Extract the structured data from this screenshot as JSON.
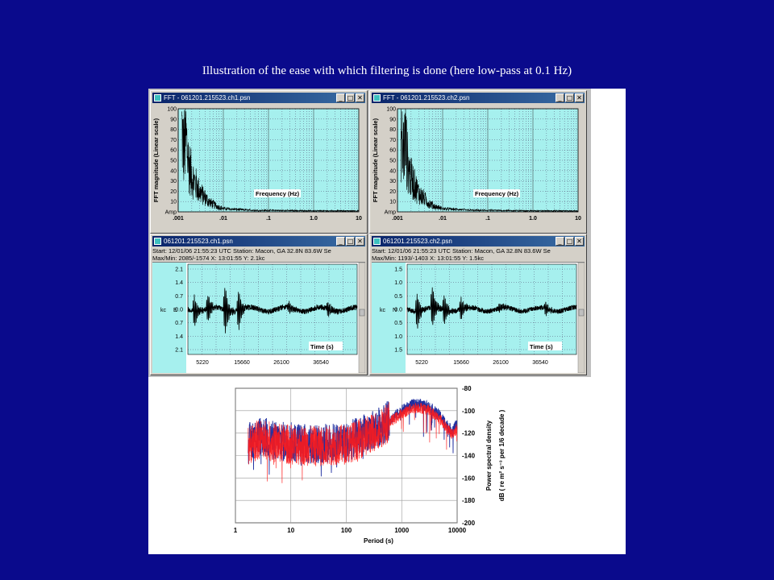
{
  "caption": "Illustration of the ease with which filtering is done (here low-pass at 0.1 Hz)",
  "fft_windows": [
    {
      "title": "FFT - 061201.215523.ch1.psn"
    },
    {
      "title": "FFT - 061201.215523.ch2.psn"
    }
  ],
  "wave_windows": [
    {
      "title": "061201.215523.ch1.psn",
      "info_line1": "Start: 12/01/06 21:55:23 UTC Station: Macon, GA 32.8N 83.6W Se",
      "info_line2": "Max/Min: 2085/-1574 X: 13:01:55 Y: 2.1kc"
    },
    {
      "title": "061201.215523.ch2.psn",
      "info_line1": "Start: 12/01/06 21:55:23 UTC Station: Macon, GA 32.8N 83.6W Se",
      "info_line2": "Max/Min: 1193/-1403 X: 13:01:55 Y: 1.5kc"
    }
  ],
  "window_buttons": {
    "minimize": "_",
    "maximize": "□",
    "close": "✕"
  },
  "chart_data": [
    {
      "type": "line",
      "ylabel": "FFT magnitude (Linear scale)",
      "xlabel": "Frequency (Hz)",
      "yticks": [
        "100",
        "90",
        "80",
        "70",
        "60",
        "50",
        "40",
        "30",
        "20",
        "10",
        "Amp"
      ],
      "xticks": [
        ".001",
        ".01",
        ".1",
        "1.0",
        "10"
      ],
      "xscale": "log",
      "ylim": [
        0,
        100
      ],
      "series": [
        {
          "values": [
            [
              0.0012,
              95
            ],
            [
              0.0013,
              70
            ],
            [
              0.0015,
              82
            ],
            [
              0.0017,
              55
            ],
            [
              0.002,
              40
            ],
            [
              0.0025,
              30
            ],
            [
              0.003,
              22
            ],
            [
              0.004,
              15
            ],
            [
              0.005,
              10
            ],
            [
              0.007,
              6
            ],
            [
              0.01,
              3
            ],
            [
              0.02,
              2
            ],
            [
              0.05,
              1
            ],
            [
              0.1,
              1
            ],
            [
              1,
              0.5
            ],
            [
              10,
              0.3
            ]
          ]
        }
      ]
    },
    {
      "type": "line",
      "ylabel": "FFT magnitude (Linear scale)",
      "xlabel": "Frequency (Hz)",
      "yticks": [
        "100",
        "90",
        "80",
        "70",
        "60",
        "50",
        "40",
        "30",
        "20",
        "10",
        "Amp"
      ],
      "xticks": [
        ".001",
        ".01",
        ".1",
        "1.0",
        "10"
      ],
      "xscale": "log",
      "ylim": [
        0,
        100
      ],
      "series": [
        {
          "values": [
            [
              0.0012,
              92
            ],
            [
              0.0013,
              68
            ],
            [
              0.0015,
              80
            ],
            [
              0.0017,
              52
            ],
            [
              0.002,
              38
            ],
            [
              0.0025,
              28
            ],
            [
              0.003,
              20
            ],
            [
              0.004,
              14
            ],
            [
              0.005,
              9
            ],
            [
              0.007,
              5
            ],
            [
              0.01,
              3
            ],
            [
              0.02,
              2
            ],
            [
              0.05,
              1
            ],
            [
              0.1,
              1
            ],
            [
              1,
              0.5
            ],
            [
              10,
              0.3
            ]
          ]
        }
      ]
    },
    {
      "type": "line",
      "ylabel": "kc",
      "channel": "E",
      "xlabel": "Time (s)",
      "yticks": [
        "2.1",
        "1.4",
        "0.7",
        "0.0",
        "0.7",
        "1.4",
        "2.1"
      ],
      "xticks": [
        "5220",
        "15660",
        "26100",
        "36540"
      ]
    },
    {
      "type": "line",
      "ylabel": "kc",
      "channel": "N",
      "xlabel": "Time (s)",
      "yticks": [
        "1.5",
        "1.0",
        "0.5",
        "0.0",
        "0.5",
        "1.0",
        "1.5"
      ],
      "xticks": [
        "5220",
        "15660",
        "26100",
        "36540"
      ]
    },
    {
      "type": "line",
      "xlabel": "Period (s)",
      "ylabel_line1": "Power spectral density",
      "ylabel_line2": "dB ( re m² s⁻³ per 1/6 decade )",
      "xscale": "log",
      "xlim": [
        1,
        10000
      ],
      "ylim": [
        -200,
        -80
      ],
      "xticks": [
        "1",
        "10",
        "100",
        "1000",
        "10000"
      ],
      "yticks": [
        "-80",
        "-100",
        "-120",
        "-140",
        "-160",
        "-180",
        "-200"
      ],
      "series": [
        {
          "color": "#1f2fa0",
          "values": [
            [
              1.7,
              -130
            ],
            [
              2,
              -125
            ],
            [
              3,
              -122
            ],
            [
              5,
              -127
            ],
            [
              10,
              -128
            ],
            [
              30,
              -130
            ],
            [
              100,
              -128
            ],
            [
              300,
              -118
            ],
            [
              700,
              -106
            ],
            [
              1000,
              -100
            ],
            [
              1500,
              -95
            ],
            [
              2000,
              -94
            ],
            [
              3000,
              -96
            ],
            [
              5000,
              -105
            ],
            [
              8000,
              -118
            ],
            [
              10000,
              -112
            ]
          ]
        },
        {
          "color": "#ff1a1a",
          "values": [
            [
              1.7,
              -132
            ],
            [
              2,
              -128
            ],
            [
              3,
              -125
            ],
            [
              5,
              -129
            ],
            [
              10,
              -130
            ],
            [
              30,
              -132
            ],
            [
              100,
              -130
            ],
            [
              300,
              -120
            ],
            [
              700,
              -108
            ],
            [
              1000,
              -103
            ],
            [
              1500,
              -98
            ],
            [
              2000,
              -97
            ],
            [
              3000,
              -99
            ],
            [
              5000,
              -108
            ],
            [
              8000,
              -121
            ],
            [
              10000,
              -116
            ]
          ]
        }
      ]
    }
  ]
}
